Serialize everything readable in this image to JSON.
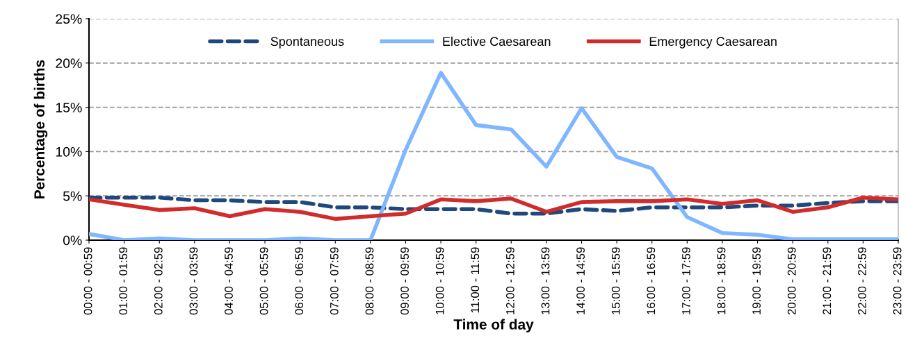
{
  "chart_data": {
    "type": "line",
    "xlabel": "Time of day",
    "ylabel": "Percentage of births",
    "categories": [
      "00:00 - 00:59",
      "01:00 - 01:59",
      "02:00 - 02:59",
      "03:00 - 03:59",
      "04:00 - 04:59",
      "05:00 - 05:59",
      "06:00 - 06:59",
      "07:00 - 07:59",
      "08:00 - 08:59",
      "09:00 - 09:59",
      "10:00 - 10:59",
      "11:00 - 11:59",
      "12:00 - 12:59",
      "13:00 - 13:59",
      "14:00 - 14:59",
      "15:00 - 15:59",
      "16:00 - 16:59",
      "17:00 - 17:59",
      "18:00 - 18:59",
      "19:00 - 19:59",
      "20:00 - 20:59",
      "21:00 - 21:59",
      "22:00 - 22:59",
      "23:00 - 23:59"
    ],
    "series": [
      {
        "name": "Spontaneous",
        "color": "#1f497d",
        "line_style": "dashed",
        "values": [
          4.8,
          4.8,
          4.8,
          4.5,
          4.5,
          4.3,
          4.3,
          3.7,
          3.7,
          3.5,
          3.5,
          3.5,
          3.0,
          3.0,
          3.5,
          3.3,
          3.7,
          3.7,
          3.7,
          3.9,
          3.9,
          4.2,
          4.4,
          4.4
        ]
      },
      {
        "name": "Elective Caesarean",
        "color": "#7eb6ff",
        "line_style": "solid",
        "values": [
          0.7,
          0,
          0.2,
          0,
          0,
          0,
          0.2,
          0,
          0,
          10.2,
          18.9,
          13.0,
          12.5,
          8.3,
          14.9,
          9.4,
          8.1,
          2.6,
          0.8,
          0.6,
          0.1,
          0.1,
          0.1,
          0.1
        ]
      },
      {
        "name": "Emergency Caesarean",
        "color": "#d22b2b",
        "line_style": "solid",
        "values": [
          4.6,
          4.0,
          3.4,
          3.6,
          2.7,
          3.5,
          3.2,
          2.4,
          2.7,
          3.0,
          4.6,
          4.4,
          4.7,
          3.2,
          4.3,
          4.4,
          4.4,
          4.6,
          4.1,
          4.5,
          3.2,
          3.7,
          4.8,
          4.6
        ]
      }
    ],
    "ylim": [
      0,
      25
    ],
    "yticks": [
      {
        "value": 0,
        "label": "0%"
      },
      {
        "value": 5,
        "label": "5%"
      },
      {
        "value": 10,
        "label": "10%"
      },
      {
        "value": 15,
        "label": "15%"
      },
      {
        "value": 20,
        "label": "20%"
      },
      {
        "value": 25,
        "label": "25%"
      }
    ],
    "grid": "y",
    "legend": "top",
    "marker": "none"
  }
}
